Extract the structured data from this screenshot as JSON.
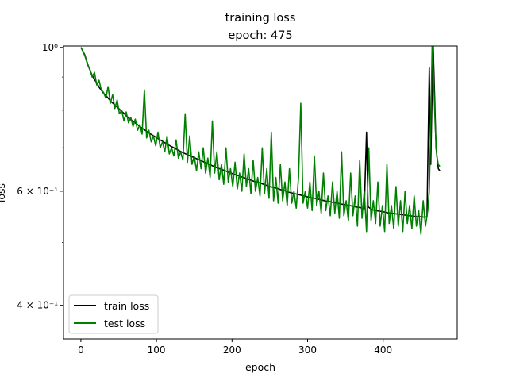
{
  "chart_data": {
    "type": "line",
    "title": "training loss",
    "subtitle": "epoch: 475",
    "xlabel": "epoch",
    "ylabel": "loss",
    "xscale": "linear",
    "yscale": "log",
    "xlim": [
      -23,
      498
    ],
    "ylim": [
      0.355,
      1.005
    ],
    "xticks": [
      0,
      100,
      200,
      300,
      400
    ],
    "yticks": [
      {
        "value": 0.4,
        "label": "4 × 10⁻¹"
      },
      {
        "value": 0.6,
        "label": "6 × 10⁻¹"
      },
      {
        "value": 1.0,
        "label": "10⁰"
      }
    ],
    "grid": false,
    "legend_position": "lower-left",
    "series": [
      {
        "name": "train loss",
        "color": "#000000",
        "points": [
          [
            0,
            1.0
          ],
          [
            5,
            0.975
          ],
          [
            10,
            0.935
          ],
          [
            15,
            0.905
          ],
          [
            20,
            0.885
          ],
          [
            25,
            0.865
          ],
          [
            30,
            0.85
          ],
          [
            35,
            0.838
          ],
          [
            40,
            0.825
          ],
          [
            45,
            0.815
          ],
          [
            50,
            0.805
          ],
          [
            55,
            0.795
          ],
          [
            60,
            0.785
          ],
          [
            65,
            0.775
          ],
          [
            70,
            0.768
          ],
          [
            75,
            0.76
          ],
          [
            80,
            0.752
          ],
          [
            85,
            0.745
          ],
          [
            90,
            0.738
          ],
          [
            95,
            0.732
          ],
          [
            100,
            0.726
          ],
          [
            105,
            0.72
          ],
          [
            110,
            0.714
          ],
          [
            115,
            0.708
          ],
          [
            120,
            0.703
          ],
          [
            125,
            0.698
          ],
          [
            130,
            0.693
          ],
          [
            135,
            0.688
          ],
          [
            140,
            0.684
          ],
          [
            145,
            0.68
          ],
          [
            150,
            0.676
          ],
          [
            155,
            0.672
          ],
          [
            160,
            0.668
          ],
          [
            165,
            0.664
          ],
          [
            170,
            0.66
          ],
          [
            175,
            0.656
          ],
          [
            180,
            0.652
          ],
          [
            185,
            0.649
          ],
          [
            190,
            0.646
          ],
          [
            195,
            0.642
          ],
          [
            200,
            0.639
          ],
          [
            205,
            0.636
          ],
          [
            210,
            0.633
          ],
          [
            215,
            0.63
          ],
          [
            220,
            0.627
          ],
          [
            225,
            0.624
          ],
          [
            230,
            0.621
          ],
          [
            235,
            0.619
          ],
          [
            240,
            0.616
          ],
          [
            245,
            0.613
          ],
          [
            250,
            0.61
          ],
          [
            255,
            0.608
          ],
          [
            260,
            0.606
          ],
          [
            265,
            0.603
          ],
          [
            270,
            0.601
          ],
          [
            275,
            0.598
          ],
          [
            280,
            0.596
          ],
          [
            285,
            0.594
          ],
          [
            290,
            0.592
          ],
          [
            295,
            0.59
          ],
          [
            300,
            0.588
          ],
          [
            305,
            0.586
          ],
          [
            310,
            0.585
          ],
          [
            315,
            0.583
          ],
          [
            320,
            0.581
          ],
          [
            325,
            0.579
          ],
          [
            330,
            0.578
          ],
          [
            335,
            0.576
          ],
          [
            340,
            0.575
          ],
          [
            345,
            0.573
          ],
          [
            350,
            0.572
          ],
          [
            355,
            0.57
          ],
          [
            360,
            0.569
          ],
          [
            365,
            0.567
          ],
          [
            370,
            0.566
          ],
          [
            375,
            0.564
          ],
          [
            378,
            0.74
          ],
          [
            380,
            0.568
          ],
          [
            385,
            0.562
          ],
          [
            390,
            0.56
          ],
          [
            395,
            0.559
          ],
          [
            400,
            0.558
          ],
          [
            405,
            0.556
          ],
          [
            410,
            0.555
          ],
          [
            415,
            0.554
          ],
          [
            420,
            0.553
          ],
          [
            425,
            0.552
          ],
          [
            430,
            0.551
          ],
          [
            435,
            0.55
          ],
          [
            440,
            0.549
          ],
          [
            445,
            0.548
          ],
          [
            450,
            0.548
          ],
          [
            455,
            0.547
          ],
          [
            458,
            0.548
          ],
          [
            461,
            0.93
          ],
          [
            463,
            0.66
          ],
          [
            466,
            1.02
          ],
          [
            468,
            0.85
          ],
          [
            470,
            0.7
          ],
          [
            473,
            0.65
          ],
          [
            475,
            0.645
          ]
        ]
      },
      {
        "name": "test loss",
        "color": "#008000",
        "points": [
          [
            0,
            1.0
          ],
          [
            3,
            0.985
          ],
          [
            6,
            0.965
          ],
          [
            9,
            0.94
          ],
          [
            12,
            0.925
          ],
          [
            15,
            0.9
          ],
          [
            18,
            0.915
          ],
          [
            21,
            0.875
          ],
          [
            24,
            0.89
          ],
          [
            27,
            0.86
          ],
          [
            30,
            0.852
          ],
          [
            33,
            0.835
          ],
          [
            36,
            0.87
          ],
          [
            39,
            0.82
          ],
          [
            42,
            0.845
          ],
          [
            45,
            0.805
          ],
          [
            48,
            0.83
          ],
          [
            51,
            0.79
          ],
          [
            54,
            0.8
          ],
          [
            57,
            0.77
          ],
          [
            60,
            0.795
          ],
          [
            63,
            0.765
          ],
          [
            66,
            0.78
          ],
          [
            69,
            0.755
          ],
          [
            72,
            0.775
          ],
          [
            75,
            0.745
          ],
          [
            78,
            0.76
          ],
          [
            81,
            0.735
          ],
          [
            84,
            0.86
          ],
          [
            87,
            0.725
          ],
          [
            90,
            0.745
          ],
          [
            93,
            0.715
          ],
          [
            96,
            0.73
          ],
          [
            99,
            0.705
          ],
          [
            102,
            0.74
          ],
          [
            105,
            0.7
          ],
          [
            108,
            0.715
          ],
          [
            111,
            0.69
          ],
          [
            114,
            0.73
          ],
          [
            117,
            0.685
          ],
          [
            120,
            0.7
          ],
          [
            123,
            0.68
          ],
          [
            126,
            0.72
          ],
          [
            129,
            0.675
          ],
          [
            132,
            0.69
          ],
          [
            135,
            0.67
          ],
          [
            138,
            0.79
          ],
          [
            141,
            0.665
          ],
          [
            144,
            0.73
          ],
          [
            147,
            0.66
          ],
          [
            150,
            0.68
          ],
          [
            153,
            0.645
          ],
          [
            156,
            0.69
          ],
          [
            159,
            0.65
          ],
          [
            162,
            0.7
          ],
          [
            165,
            0.64
          ],
          [
            168,
            0.675
          ],
          [
            171,
            0.63
          ],
          [
            174,
            0.77
          ],
          [
            177,
            0.64
          ],
          [
            180,
            0.69
          ],
          [
            183,
            0.625
          ],
          [
            186,
            0.66
          ],
          [
            189,
            0.615
          ],
          [
            192,
            0.7
          ],
          [
            195,
            0.62
          ],
          [
            198,
            0.65
          ],
          [
            201,
            0.61
          ],
          [
            204,
            0.665
          ],
          [
            207,
            0.605
          ],
          [
            210,
            0.64
          ],
          [
            213,
            0.6
          ],
          [
            216,
            0.685
          ],
          [
            219,
            0.61
          ],
          [
            222,
            0.65
          ],
          [
            225,
            0.595
          ],
          [
            228,
            0.67
          ],
          [
            231,
            0.6
          ],
          [
            234,
            0.63
          ],
          [
            237,
            0.59
          ],
          [
            240,
            0.7
          ],
          [
            243,
            0.595
          ],
          [
            246,
            0.65
          ],
          [
            249,
            0.585
          ],
          [
            252,
            0.74
          ],
          [
            255,
            0.58
          ],
          [
            258,
            0.63
          ],
          [
            261,
            0.575
          ],
          [
            264,
            0.66
          ],
          [
            267,
            0.58
          ],
          [
            270,
            0.62
          ],
          [
            273,
            0.57
          ],
          [
            276,
            0.65
          ],
          [
            279,
            0.575
          ],
          [
            282,
            0.6
          ],
          [
            285,
            0.565
          ],
          [
            288,
            0.63
          ],
          [
            291,
            0.82
          ],
          [
            294,
            0.575
          ],
          [
            297,
            0.6
          ],
          [
            300,
            0.565
          ],
          [
            303,
            0.62
          ],
          [
            306,
            0.56
          ],
          [
            309,
            0.68
          ],
          [
            312,
            0.57
          ],
          [
            315,
            0.6
          ],
          [
            318,
            0.555
          ],
          [
            321,
            0.64
          ],
          [
            324,
            0.56
          ],
          [
            327,
            0.59
          ],
          [
            330,
            0.55
          ],
          [
            333,
            0.62
          ],
          [
            336,
            0.555
          ],
          [
            339,
            0.6
          ],
          [
            342,
            0.545
          ],
          [
            345,
            0.69
          ],
          [
            348,
            0.55
          ],
          [
            351,
            0.58
          ],
          [
            354,
            0.54
          ],
          [
            357,
            0.64
          ],
          [
            360,
            0.55
          ],
          [
            363,
            0.59
          ],
          [
            366,
            0.53
          ],
          [
            369,
            0.67
          ],
          [
            372,
            0.545
          ],
          [
            375,
            0.6
          ],
          [
            378,
            0.52
          ],
          [
            381,
            0.7
          ],
          [
            384,
            0.54
          ],
          [
            387,
            0.58
          ],
          [
            390,
            0.535
          ],
          [
            393,
            0.62
          ],
          [
            396,
            0.53
          ],
          [
            399,
            0.57
          ],
          [
            402,
            0.52
          ],
          [
            405,
            0.66
          ],
          [
            408,
            0.535
          ],
          [
            411,
            0.57
          ],
          [
            414,
            0.525
          ],
          [
            417,
            0.61
          ],
          [
            420,
            0.53
          ],
          [
            423,
            0.58
          ],
          [
            426,
            0.52
          ],
          [
            429,
            0.6
          ],
          [
            432,
            0.535
          ],
          [
            435,
            0.57
          ],
          [
            438,
            0.525
          ],
          [
            441,
            0.59
          ],
          [
            444,
            0.53
          ],
          [
            447,
            0.56
          ],
          [
            450,
            0.515
          ],
          [
            453,
            0.58
          ],
          [
            456,
            0.53
          ],
          [
            459,
            0.56
          ],
          [
            461,
            0.6
          ],
          [
            463,
            0.75
          ],
          [
            465,
            1.03
          ],
          [
            467,
            0.88
          ],
          [
            469,
            0.75
          ],
          [
            471,
            0.68
          ],
          [
            473,
            0.66
          ],
          [
            475,
            0.655
          ]
        ]
      }
    ]
  }
}
